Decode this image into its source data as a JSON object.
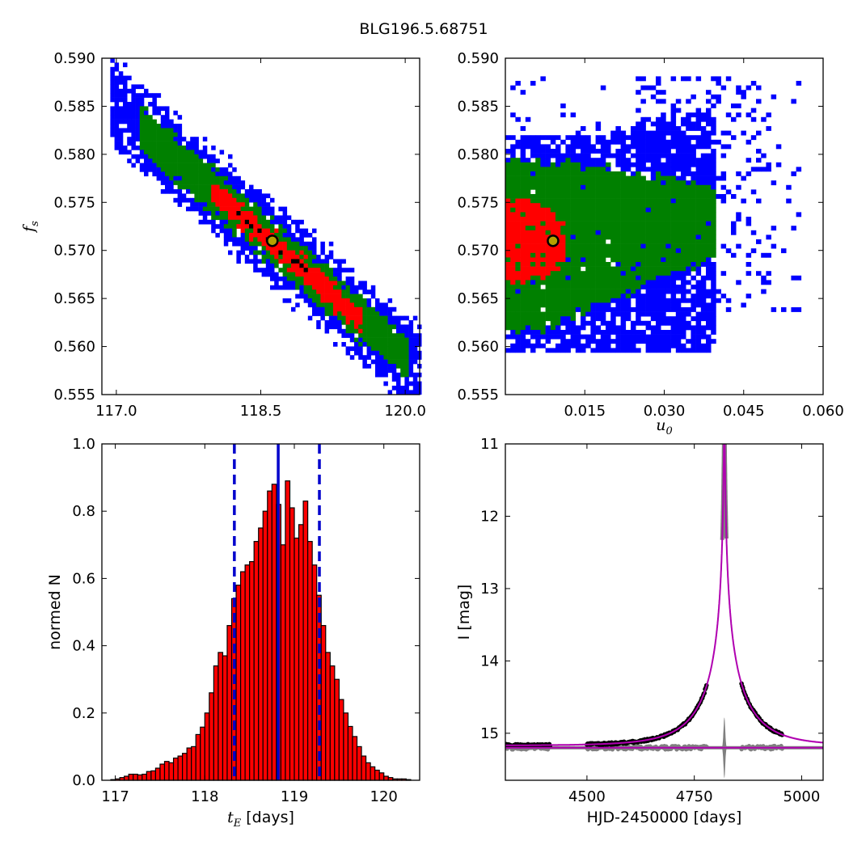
{
  "figure": {
    "title": "BLG196.5.68751"
  },
  "colors": {
    "sigma3": "#0000ff",
    "sigma2": "#008000",
    "sigma1": "#ff0000",
    "best_bin": "#000000",
    "best_marker_fill": "#b5a100",
    "histogram_bar": "#ff0000",
    "median_line": "#0000cc",
    "model_curve": "#b000b0",
    "data_points": "#000000",
    "residuals": "#808080"
  },
  "chart_data": [
    {
      "type": "heatmap",
      "panel": "tE-fs",
      "xlabel": "",
      "ylabel": "f_s",
      "xlim": [
        116.85,
        120.15
      ],
      "ylim": [
        0.555,
        0.59
      ],
      "xticks": [
        117.0,
        118.5,
        120.0
      ],
      "xtick_labels": [
        "117.0",
        "118.5",
        "120.0"
      ],
      "yticks": [
        0.555,
        0.56,
        0.565,
        0.57,
        0.575,
        0.58,
        0.585,
        0.59
      ],
      "ytick_labels": [
        "0.555",
        "0.560",
        "0.565",
        "0.570",
        "0.575",
        "0.580",
        "0.585",
        "0.590"
      ],
      "density_model": {
        "center_x": 118.6,
        "center_y": 0.571,
        "slope": -0.0087,
        "sigma3_halfwidth": 0.0042,
        "sigma2_halfwidth": 0.0022,
        "sigma1_halfwidth": 0.0012,
        "sigma3_x": [
          116.95,
          120.3
        ],
        "sigma2_x": [
          117.25,
          120.05
        ],
        "sigma1_x": [
          118.0,
          119.55
        ],
        "best_x": [
          118.2,
          119.0
        ]
      },
      "best_fit": {
        "x": 118.62,
        "y": 0.571
      }
    },
    {
      "type": "heatmap",
      "panel": "u0-fs",
      "xlabel": "u_0",
      "ylabel": "",
      "xlim": [
        0.0,
        0.06
      ],
      "ylim": [
        0.555,
        0.59
      ],
      "xticks": [
        0.015,
        0.03,
        0.045,
        0.06
      ],
      "xtick_labels": [
        "0.015",
        "0.030",
        "0.045",
        "0.060"
      ],
      "yticks": [
        0.555,
        0.56,
        0.565,
        0.57,
        0.575,
        0.58,
        0.585,
        0.59
      ],
      "ytick_labels": [
        "0.555",
        "0.560",
        "0.565",
        "0.570",
        "0.575",
        "0.580",
        "0.585",
        "0.590"
      ],
      "best_fit": {
        "x": 0.009,
        "y": 0.571
      }
    },
    {
      "type": "bar",
      "panel": "tE-histogram",
      "xlabel": "t_E [days]",
      "ylabel": "normed N",
      "xlim": [
        116.85,
        120.4
      ],
      "ylim": [
        0.0,
        1.0
      ],
      "xticks": [
        117,
        118,
        119,
        120
      ],
      "xtick_labels": [
        "117",
        "118",
        "119",
        "120"
      ],
      "yticks": [
        0.0,
        0.2,
        0.4,
        0.6,
        0.8,
        1.0
      ],
      "ytick_labels": [
        "0.0",
        "0.2",
        "0.4",
        "0.6",
        "0.8",
        "1.0"
      ],
      "bin_start": 116.95,
      "bin_width": 0.05,
      "values": [
        0.002,
        0.004,
        0.008,
        0.012,
        0.018,
        0.018,
        0.016,
        0.018,
        0.026,
        0.028,
        0.036,
        0.048,
        0.056,
        0.052,
        0.066,
        0.072,
        0.08,
        0.096,
        0.1,
        0.136,
        0.158,
        0.2,
        0.26,
        0.34,
        0.38,
        0.37,
        0.46,
        0.54,
        0.58,
        0.62,
        0.64,
        0.65,
        0.71,
        0.75,
        0.8,
        0.86,
        0.88,
        0.82,
        0.7,
        0.89,
        0.81,
        0.72,
        0.76,
        0.83,
        0.71,
        0.64,
        0.55,
        0.46,
        0.38,
        0.34,
        0.3,
        0.24,
        0.2,
        0.16,
        0.13,
        0.1,
        0.072,
        0.052,
        0.04,
        0.03,
        0.022,
        0.012,
        0.008,
        0.004,
        0.004,
        0.004,
        0.002
      ],
      "median": 118.82,
      "interval": [
        118.33,
        119.28
      ]
    },
    {
      "type": "line",
      "panel": "light-curve",
      "xlabel": "HJD-2450000 [days]",
      "ylabel": "I [mag]",
      "xlim": [
        4310,
        5050
      ],
      "ylim": [
        15.65,
        11.0
      ],
      "xticks": [
        4500,
        4750,
        5000
      ],
      "xtick_labels": [
        "4500",
        "4750",
        "5000"
      ],
      "yticks": [
        11,
        12,
        13,
        14,
        15
      ],
      "ytick_labels": [
        "11",
        "12",
        "13",
        "14",
        "15"
      ],
      "model": {
        "t0": 4820,
        "u0": 0.009,
        "tE": 118.8,
        "I_base": 15.17,
        "fs": 0.571
      },
      "data_segments": [
        [
          4310,
          4415
        ],
        [
          4500,
          4780
        ],
        [
          4860,
          4955
        ]
      ],
      "residual_baseline": 15.2
    }
  ]
}
